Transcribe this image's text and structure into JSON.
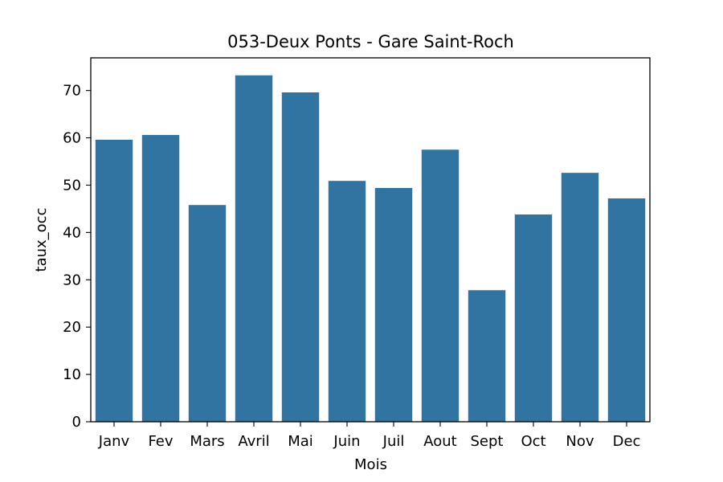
{
  "chart_data": {
    "type": "bar",
    "title": "053-Deux Ponts - Gare Saint-Roch",
    "xlabel": "Mois",
    "ylabel": "taux_occ",
    "categories": [
      "Janv",
      "Fev",
      "Mars",
      "Avril",
      "Mai",
      "Juin",
      "Juil",
      "Aout",
      "Sept",
      "Oct",
      "Nov",
      "Dec"
    ],
    "values": [
      59.6,
      60.6,
      45.8,
      73.2,
      69.6,
      50.9,
      49.4,
      57.5,
      27.8,
      43.8,
      52.6,
      47.2
    ],
    "ylim": [
      0,
      76.9
    ],
    "yticks": [
      0,
      10,
      20,
      30,
      40,
      50,
      60,
      70
    ],
    "bar_color": "#3274a1",
    "grid": false,
    "legend": "none"
  }
}
